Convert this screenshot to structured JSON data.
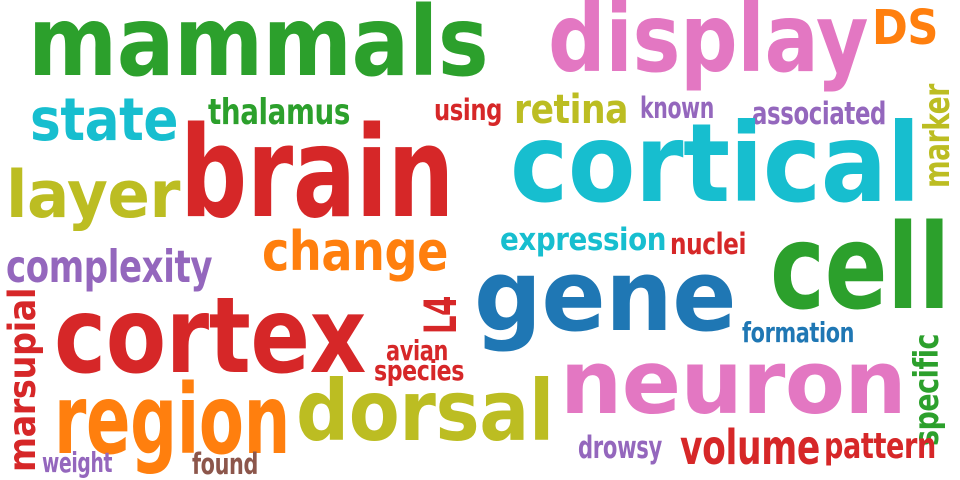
{
  "words": [
    {
      "text": "mammals",
      "color": "#2ca02c"
    },
    {
      "text": "display",
      "color": "#e377c2"
    },
    {
      "text": "DS",
      "color": "#ff7f0e"
    },
    {
      "text": "state",
      "color": "#17becf"
    },
    {
      "text": "thalamus",
      "color": "#2ca02c"
    },
    {
      "text": "using",
      "color": "#d62728"
    },
    {
      "text": "retina",
      "color": "#bcbd22"
    },
    {
      "text": "known",
      "color": "#9467bd"
    },
    {
      "text": "associated",
      "color": "#9467bd"
    },
    {
      "text": "marker",
      "color": "#bcbd22"
    },
    {
      "text": "layer",
      "color": "#bcbd22"
    },
    {
      "text": "brain",
      "color": "#d62728"
    },
    {
      "text": "cortical",
      "color": "#17becf"
    },
    {
      "text": "change",
      "color": "#ff7f0e"
    },
    {
      "text": "expression",
      "color": "#17becf"
    },
    {
      "text": "nuclei",
      "color": "#d62728"
    },
    {
      "text": "cell",
      "color": "#2ca02c"
    },
    {
      "text": "complexity",
      "color": "#9467bd"
    },
    {
      "text": "gene",
      "color": "#1f77b4"
    },
    {
      "text": "marsupial",
      "color": "#d62728"
    },
    {
      "text": "cortex",
      "color": "#d62728"
    },
    {
      "text": "L4",
      "color": "#d62728"
    },
    {
      "text": "formation",
      "color": "#1f77b4"
    },
    {
      "text": "avian",
      "color": "#d62728"
    },
    {
      "text": "species",
      "color": "#d62728"
    },
    {
      "text": "specific",
      "color": "#2ca02c"
    },
    {
      "text": "region",
      "color": "#ff7f0e"
    },
    {
      "text": "dorsal",
      "color": "#bcbd22"
    },
    {
      "text": "neuron",
      "color": "#e377c2"
    },
    {
      "text": "drowsy",
      "color": "#9467bd"
    },
    {
      "text": "volume",
      "color": "#d62728"
    },
    {
      "text": "pattern",
      "color": "#d62728"
    },
    {
      "text": "weight",
      "color": "#9467bd"
    },
    {
      "text": "found",
      "color": "#8c564b"
    }
  ]
}
